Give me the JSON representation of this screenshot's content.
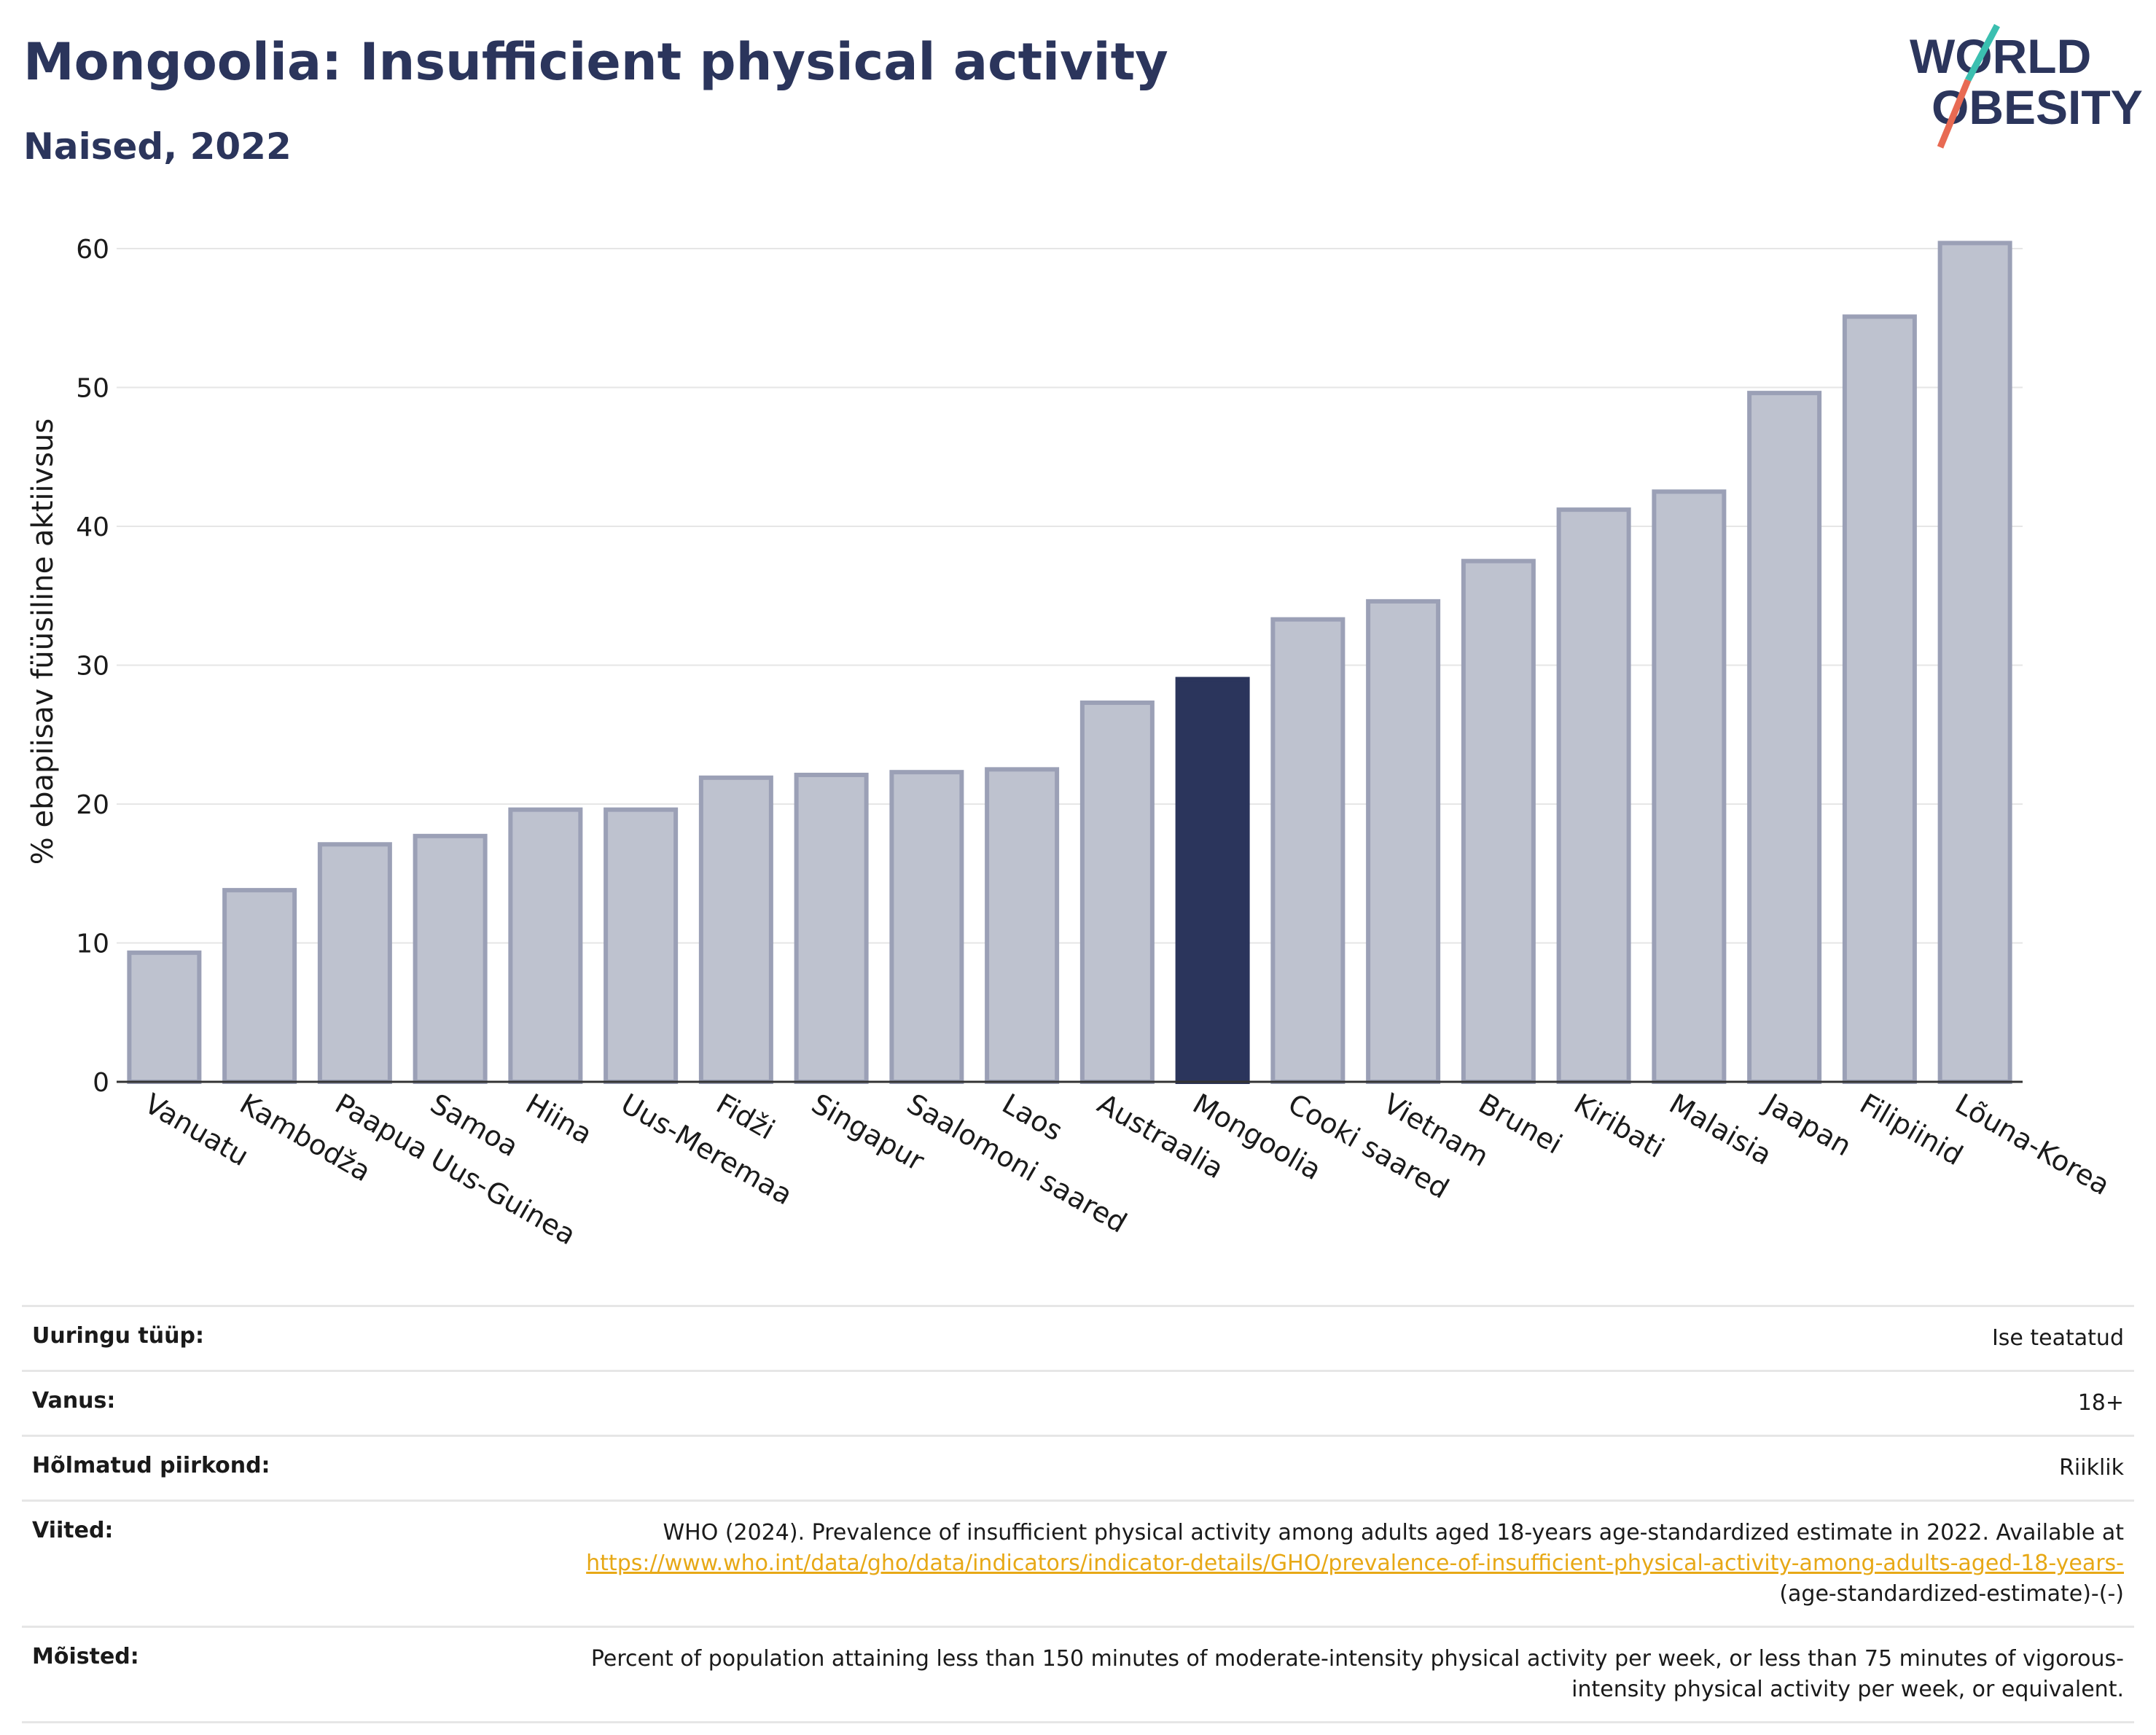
{
  "header": {
    "title": "Mongoolia: Insufficient physical activity",
    "subtitle": "Naised, 2022",
    "logo_line1": "WORLD",
    "logo_line2": "OBESITY"
  },
  "chart_data": {
    "type": "bar",
    "ylabel": "% ebapiisav füüsiline aktiivsus",
    "xlabel": "",
    "ylim": [
      0,
      62
    ],
    "yticks": [
      0,
      10,
      20,
      30,
      40,
      50,
      60
    ],
    "grid": true,
    "categories": [
      "Vanuatu",
      "Kambodža",
      "Paapua Uus-Guinea",
      "Samoa",
      "Hiina",
      "Uus-Meremaa",
      "Fidži",
      "Singapur",
      "Saalomoni saared",
      "Laos",
      "Austraalia",
      "Mongoolia",
      "Cooki saared",
      "Vietnam",
      "Brunei",
      "Kiribati",
      "Malaisia",
      "Jaapan",
      "Filipiinid",
      "Lõuna-Korea"
    ],
    "values": [
      9.3,
      13.8,
      17.1,
      17.7,
      19.6,
      19.6,
      21.9,
      22.1,
      22.3,
      22.5,
      27.3,
      29.0,
      33.3,
      34.6,
      37.5,
      41.2,
      42.5,
      49.6,
      55.1,
      60.4
    ],
    "highlight": "Mongoolia",
    "colors": {
      "bar": "#bec2cf",
      "bar_border": "#9ba0b6",
      "highlight": "#2b355c",
      "grid": "#e6e6e6",
      "axis": "#333333"
    }
  },
  "meta": {
    "rows": [
      {
        "key": "Uuringu tüüp:",
        "value": "Ise teatatud"
      },
      {
        "key": "Vanus:",
        "value": "18+"
      },
      {
        "key": "Hõlmatud piirkond:",
        "value": "Riiklik"
      },
      {
        "key": "Viited:",
        "value": "WHO (2024). Prevalence of insufficient physical activity among adults aged 18-years age-standardized estimate in 2022. Available at",
        "link": "https://www.who.int/data/gho/data/indicators/indicator-details/GHO/prevalence-of-insufficient-physical-activity-among-adults-aged-18-years-",
        "after": "(age-standardized-estimate)-(-)"
      },
      {
        "key": "Mõisted:",
        "value": "Percent of population attaining less than 150 minutes of moderate-intensity physical activity per week, or less than 75 minutes of vigorous-intensity physical activity per week, or equivalent."
      }
    ]
  }
}
